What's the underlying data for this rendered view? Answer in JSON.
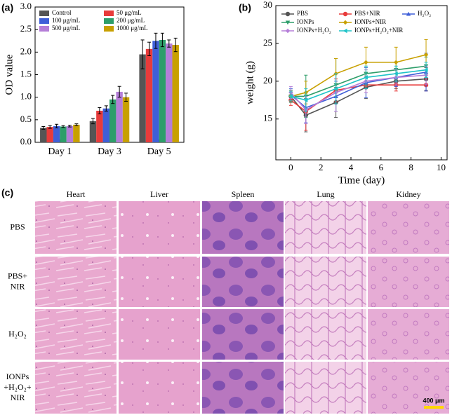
{
  "chart_data": [
    {
      "type": "bar",
      "panel_label": "(a)",
      "y_label": "OD value",
      "categories": [
        "Day 1",
        "Day 3",
        "Day 5"
      ],
      "series": [
        {
          "name": "Control",
          "color": "#555555",
          "values": [
            0.32,
            0.47,
            1.95
          ],
          "errors": [
            0.03,
            0.06,
            0.32
          ]
        },
        {
          "name": "50 μg/mL",
          "color": "#e83b3b",
          "values": [
            0.34,
            0.7,
            2.07
          ],
          "errors": [
            0.03,
            0.07,
            0.15
          ]
        },
        {
          "name": "100 μg/mL",
          "color": "#3f5fd8",
          "values": [
            0.36,
            0.75,
            2.25
          ],
          "errors": [
            0.04,
            0.06,
            0.17
          ]
        },
        {
          "name": "200 μg/mL",
          "color": "#2e9e6a",
          "values": [
            0.35,
            0.95,
            2.27
          ],
          "errors": [
            0.02,
            0.09,
            0.15
          ]
        },
        {
          "name": "500 μg/mL",
          "color": "#b57ed8",
          "values": [
            0.36,
            1.12,
            2.19
          ],
          "errors": [
            0.02,
            0.12,
            0.08
          ]
        },
        {
          "name": "1000 μg/mL",
          "color": "#c8a000",
          "values": [
            0.39,
            1.0,
            2.16
          ],
          "errors": [
            0.02,
            0.09,
            0.15
          ]
        }
      ],
      "ylim": [
        0,
        3
      ],
      "yticks": [
        {
          "value": 0,
          "label": "0.0"
        },
        0.5,
        {
          "value": 1,
          "label": "1.0"
        },
        1.5,
        {
          "value": 2,
          "label": "2.0"
        },
        2.5,
        {
          "value": 3,
          "label": "3.0"
        }
      ],
      "legend": "upper left"
    },
    {
      "type": "line",
      "panel_label": "(b)",
      "x_label": "Time (day)",
      "y_label": "weight (g)",
      "x": [
        0,
        1,
        3,
        5,
        7,
        9
      ],
      "series": [
        {
          "name": "PBS",
          "color": "#555555",
          "marker": "circle",
          "values": [
            18,
            15.5,
            17.2,
            19.2,
            20,
            20.3
          ],
          "errors": [
            0.8,
            2.2,
            2,
            1.5,
            1,
            1.5
          ]
        },
        {
          "name": "PBS+NIR",
          "color": "#e83b3b",
          "marker": "circle",
          "values": [
            17.5,
            16,
            18.8,
            19.5,
            19.5,
            19.5
          ],
          "errors": [
            0.7,
            2.5,
            1.5,
            1,
            0.8,
            0.8
          ]
        },
        {
          "name": "H₂O₂",
          "color": "#3f5fd8",
          "marker": "triangle",
          "values": [
            18.2,
            16.5,
            18,
            19.8,
            20.5,
            21.2
          ],
          "errors": [
            0.8,
            2,
            2,
            2,
            1.2,
            2.5
          ]
        },
        {
          "name": "IONPs",
          "color": "#2e9e6a",
          "marker": "triangle-down",
          "values": [
            18,
            18,
            19.5,
            21,
            21.5,
            22
          ],
          "errors": [
            0.8,
            2.8,
            3.5,
            1.5,
            1,
            1.2
          ]
        },
        {
          "name": "IONPs+NIR",
          "color": "#c8a000",
          "marker": "diamond",
          "values": [
            18,
            18.5,
            21,
            22.5,
            22.5,
            23.5
          ],
          "errors": [
            0.6,
            1.5,
            2,
            2,
            2,
            2
          ]
        },
        {
          "name": "IONPs+H₂O₂",
          "color": "#b57ed8",
          "marker": "diamond",
          "values": [
            18.5,
            16.2,
            18.5,
            20,
            20.5,
            20.8
          ],
          "errors": [
            0.8,
            1.8,
            2.5,
            1.5,
            1,
            1.2
          ]
        },
        {
          "name": "IONPs+H₂O₂+NIR",
          "color": "#1fc3c8",
          "marker": "triangle-left",
          "values": [
            18,
            17.5,
            19,
            20.5,
            21,
            21.5
          ],
          "errors": [
            0.6,
            1.5,
            2,
            1.5,
            1,
            1
          ]
        }
      ],
      "xlim": [
        -1,
        10.4
      ],
      "xticks": [
        0,
        2,
        4,
        6,
        8,
        10
      ],
      "ylim": [
        9.6,
        30
      ],
      "yticks": [
        15,
        20,
        25,
        30
      ],
      "legend": "upper left"
    }
  ],
  "histology": {
    "panel_label": "(c)",
    "columns": [
      "Heart",
      "Liver",
      "Spleen",
      "Lung",
      "Kidney"
    ],
    "rows": [
      [
        "PBS"
      ],
      [
        "PBS+",
        "NIR"
      ],
      [
        "H₂O₂"
      ],
      [
        "IONPs",
        "+H₂O₂+",
        "NIR"
      ]
    ],
    "scale_bar": "400 μm"
  }
}
